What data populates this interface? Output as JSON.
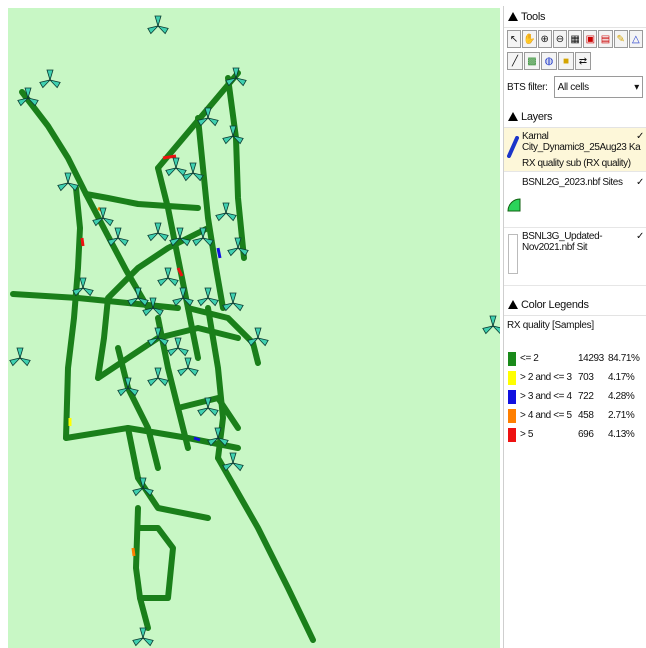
{
  "map": {
    "background": "#c8f7c5",
    "route_color": "#1a7f1a",
    "icons": [
      "bts-site-icon",
      "drive-route"
    ]
  },
  "tools": {
    "title": "Tools",
    "row1": [
      "pointer-icon",
      "pan-icon",
      "zoom-in-icon",
      "zoom-out-icon",
      "grid-icon",
      "select-icon",
      "measure-icon",
      "pencil-icon",
      "triangle-icon"
    ],
    "row2": [
      "line-icon",
      "layer-add-icon",
      "globe-icon",
      "export-icon",
      "refresh-icon"
    ]
  },
  "bts_filter": {
    "label": "BTS filter:",
    "value": "All cells"
  },
  "layers": {
    "title": "Layers",
    "items": [
      {
        "name": "Karnal City_Dynamic8_25Aug23 Ka",
        "sub": "RX quality sub (RX quality)",
        "check": "✓"
      },
      {
        "name": "BSNL2G_2023.nbf Sites",
        "sub": "",
        "check": "✓"
      },
      {
        "name": "BSNL3G_Updated-Nov2021.nbf Sit",
        "sub": "",
        "check": "✓"
      }
    ]
  },
  "legend": {
    "title": "Color Legends",
    "subtitle": "RX quality [Samples]",
    "rows": [
      {
        "label": "<= 2",
        "count": "14293",
        "pct": "84.71%",
        "color": "#1a8a1a"
      },
      {
        "label": "> 2 and <= 3",
        "count": "703",
        "pct": "4.17%",
        "color": "#ffff00"
      },
      {
        "label": "> 3 and <= 4",
        "count": "722",
        "pct": "4.28%",
        "color": "#1010e0"
      },
      {
        "label": "> 4 and <= 5",
        "count": "458",
        "pct": "2.71%",
        "color": "#ff7f00"
      },
      {
        "label": "> 5",
        "count": "696",
        "pct": "4.13%",
        "color": "#ee1111"
      }
    ]
  }
}
